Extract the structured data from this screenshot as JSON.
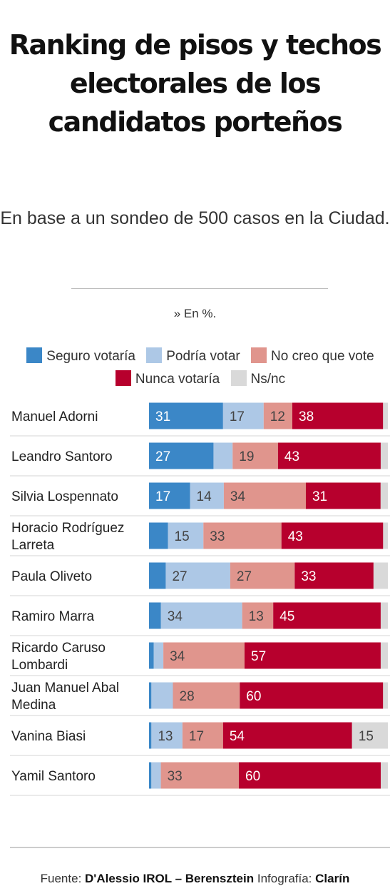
{
  "header": {
    "title": "Ranking de pisos y techos electorales de los candidatos porteños",
    "subtitle": "En base a un sondeo de 500 casos en la Ciudad.",
    "unit": "» En %."
  },
  "colors": {
    "seguro": "#3b87c7",
    "podria": "#adc8e6",
    "no_creo": "#e0958d",
    "nunca": "#b7002d",
    "nsnc": "#d9d9d9",
    "label_dark": "#ffffff",
    "label_light": "#444444"
  },
  "chart_data": {
    "type": "bar",
    "orientation": "horizontal-stacked",
    "categories": [
      [
        "Manuel Adorni"
      ],
      [
        "Leandro Santoro"
      ],
      [
        "Silvia Lospennato"
      ],
      [
        "Horacio Rodríguez",
        "Larreta"
      ],
      [
        "Paula Oliveto"
      ],
      [
        "Ramiro Marra"
      ],
      [
        "Ricardo Caruso",
        "Lombardi"
      ],
      [
        "Juan Manuel Abal",
        "Medina"
      ],
      [
        "Vanina Biasi"
      ],
      [
        "Yamil Santoro"
      ]
    ],
    "series": [
      {
        "name": "Seguro votaría",
        "color_key": "seguro",
        "values": [
          31,
          27,
          17,
          8,
          7,
          5,
          2,
          1,
          1,
          1
        ]
      },
      {
        "name": "Podría votar",
        "color_key": "podria",
        "values": [
          17,
          8,
          14,
          15,
          27,
          34,
          4,
          9,
          13,
          4
        ]
      },
      {
        "name": "No creo que vote",
        "color_key": "no_creo",
        "values": [
          12,
          19,
          34,
          33,
          27,
          13,
          34,
          28,
          17,
          33
        ]
      },
      {
        "name": "Nunca votaría",
        "color_key": "nunca",
        "values": [
          38,
          43,
          31,
          43,
          33,
          45,
          57,
          60,
          54,
          60
        ]
      },
      {
        "name": "Ns/nc",
        "color_key": "nsnc",
        "values": [
          2,
          3,
          3,
          2,
          6,
          3,
          3,
          2,
          15,
          3
        ]
      }
    ],
    "data_labels": [
      [
        "31",
        "17",
        "12",
        "38",
        ""
      ],
      [
        "27",
        "",
        "19",
        "43",
        ""
      ],
      [
        "17",
        "14",
        "34",
        "31",
        ""
      ],
      [
        "",
        "15",
        "33",
        "43",
        ""
      ],
      [
        "",
        "27",
        "27",
        "33",
        ""
      ],
      [
        "",
        "34",
        "13",
        "45",
        ""
      ],
      [
        "",
        "",
        "34",
        "57",
        ""
      ],
      [
        "",
        "",
        "28",
        "60",
        ""
      ],
      [
        "",
        "13",
        "17",
        "54",
        "15"
      ],
      [
        "",
        "",
        "33",
        "60",
        ""
      ]
    ],
    "xlim": [
      0,
      100
    ],
    "legend_position": "top"
  },
  "footer": {
    "source_label": "Fuente:",
    "source_name": "D'Alessio IROL – Berensztein",
    "credit_label": "Infografía:",
    "credit_name": "Clarín"
  }
}
